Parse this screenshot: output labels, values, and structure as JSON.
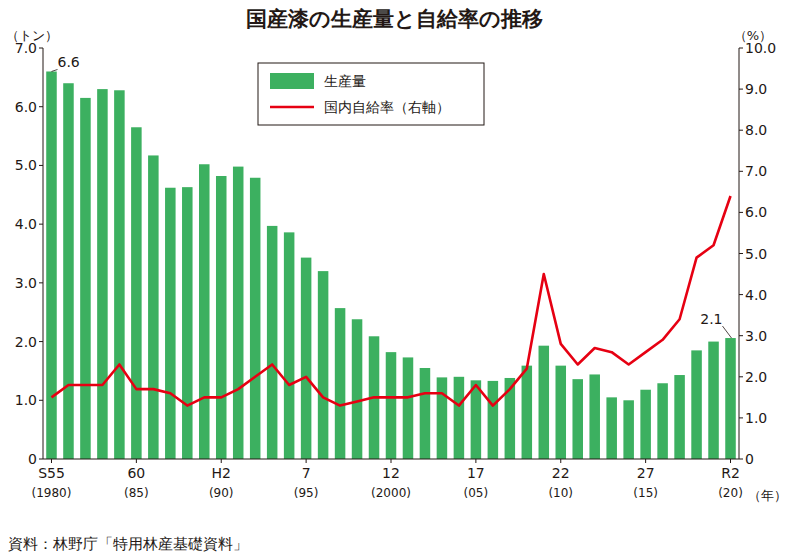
{
  "chart_data": {
    "type": "bar",
    "title": "国産漆の生産量と自給率の推移",
    "y_label": "（トン）",
    "y2_label": "（%）",
    "x_label": "（年）",
    "source": "資料：林野庁「特用林産基礎資料」",
    "categories": [
      "S55\n(1980)",
      null,
      null,
      null,
      null,
      "60\n(85)",
      null,
      null,
      null,
      null,
      "H2\n(90)",
      null,
      null,
      null,
      null,
      "7\n(95)",
      null,
      null,
      null,
      null,
      "12\n(2000)",
      null,
      null,
      null,
      null,
      "17\n(05)",
      null,
      null,
      null,
      null,
      "22\n(10)",
      null,
      null,
      null,
      null,
      "27\n(15)",
      null,
      null,
      null,
      null,
      "R2\n(20)"
    ],
    "series": [
      {
        "name": "生産量",
        "type": "bar",
        "color": "#3cb060",
        "values": [
          6.6,
          6.4,
          6.15,
          6.3,
          6.28,
          5.65,
          5.17,
          4.62,
          4.63,
          5.02,
          4.82,
          4.98,
          4.79,
          3.97,
          3.86,
          3.43,
          3.2,
          2.57,
          2.38,
          2.09,
          1.82,
          1.73,
          1.55,
          1.39,
          1.4,
          1.34,
          1.33,
          1.38,
          1.59,
          1.93,
          1.59,
          1.36,
          1.44,
          1.05,
          1.0,
          1.18,
          1.29,
          1.43,
          1.85,
          2.0,
          2.06
        ],
        "value_labels": [
          "6.6",
          null,
          null,
          null,
          null,
          null,
          null,
          null,
          null,
          null,
          null,
          null,
          null,
          null,
          null,
          null,
          null,
          null,
          null,
          null,
          null,
          null,
          null,
          null,
          null,
          null,
          null,
          null,
          null,
          null,
          null,
          null,
          null,
          null,
          null,
          null,
          null,
          null,
          null,
          null,
          "2.1"
        ]
      },
      {
        "name": "国内自給率（右軸）",
        "type": "line",
        "color": "#e60012",
        "axis": "y2",
        "values": [
          1.5,
          1.8,
          1.8,
          1.8,
          2.3,
          1.7,
          1.7,
          1.6,
          1.3,
          1.5,
          1.5,
          1.7,
          2.0,
          2.3,
          1.8,
          2.0,
          1.5,
          1.3,
          1.4,
          1.5,
          1.5,
          1.5,
          1.6,
          1.6,
          1.3,
          1.8,
          1.3,
          1.7,
          2.2,
          4.5,
          2.8,
          2.3,
          2.7,
          2.6,
          2.3,
          2.6,
          2.9,
          3.4,
          4.9,
          5.2,
          6.4
        ]
      }
    ],
    "ylim": [
      0,
      7
    ],
    "yticks": [
      0,
      {
        "value": 1,
        "label": "1.0"
      },
      {
        "value": 2,
        "label": "2.0"
      },
      {
        "value": 3,
        "label": "3.0"
      },
      {
        "value": 4,
        "label": "4.0"
      },
      {
        "value": 5,
        "label": "5.0"
      },
      {
        "value": 6,
        "label": "6.0"
      },
      {
        "value": 7,
        "label": "7.0"
      }
    ],
    "y2lim": [
      0,
      10
    ],
    "y2ticks": [
      0,
      {
        "value": 1,
        "label": "1.0"
      },
      {
        "value": 2,
        "label": "2.0"
      },
      {
        "value": 3,
        "label": "3.0"
      },
      {
        "value": 4,
        "label": "4.0"
      },
      {
        "value": 5,
        "label": "5.0"
      },
      {
        "value": 6,
        "label": "6.0"
      },
      {
        "value": 7,
        "label": "7.0"
      },
      {
        "value": 8,
        "label": "8.0"
      },
      {
        "value": 9,
        "label": "9.0"
      },
      {
        "value": 10,
        "label": "10.0"
      }
    ],
    "grid": false,
    "legend": "upper center",
    "data_labels": true
  }
}
